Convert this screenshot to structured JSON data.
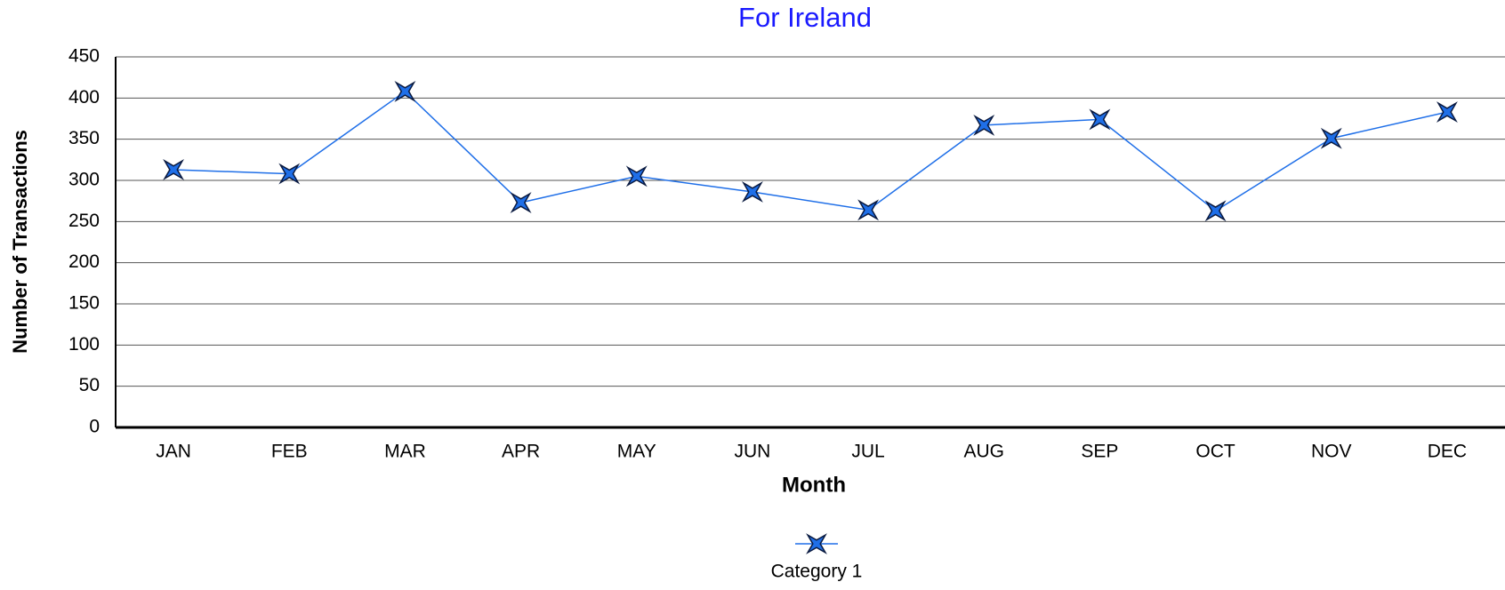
{
  "chart_data": {
    "type": "line",
    "title": "For Ireland",
    "x_label": "Month",
    "y_label": "Number of Transactions",
    "categories": [
      "JAN",
      "FEB",
      "MAR",
      "APR",
      "MAY",
      "JUN",
      "JUL",
      "AUG",
      "SEP",
      "OCT",
      "NOV",
      "DEC"
    ],
    "series": [
      {
        "name": "Category 1",
        "color": "#1f6fe8",
        "values": [
          313,
          308,
          408,
          273,
          305,
          286,
          264,
          367,
          374,
          263,
          351,
          383
        ]
      }
    ],
    "ylim": [
      0,
      450
    ],
    "yticks": [
      0,
      50,
      100,
      150,
      200,
      250,
      300,
      350,
      400,
      450
    ],
    "grid": true,
    "legend": "bottom"
  }
}
